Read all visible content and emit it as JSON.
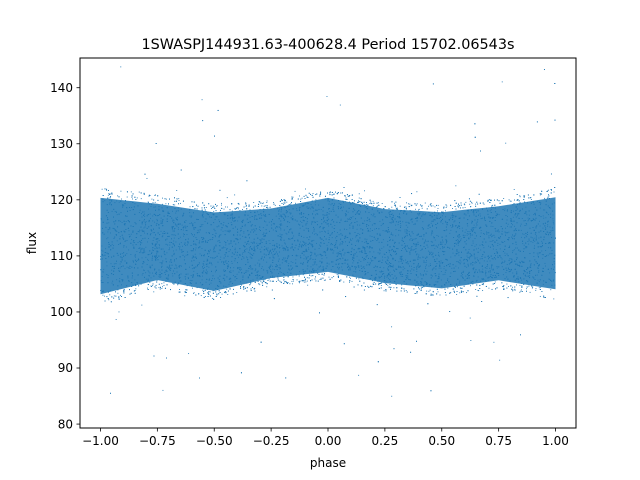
{
  "chart_data": {
    "type": "scatter",
    "title": "1SWASPJ144931.63-400628.4 Period 15702.06543s",
    "xlabel": "phase",
    "ylabel": "flux",
    "xlim": [
      -1.09,
      1.09
    ],
    "ylim": [
      79.3,
      145.3
    ],
    "xticks": [
      -1.0,
      -0.75,
      -0.5,
      -0.25,
      0.0,
      0.25,
      0.5,
      0.75,
      1.0
    ],
    "xtick_labels": [
      "−1.00",
      "−0.75",
      "−0.50",
      "−0.25",
      "0.00",
      "0.25",
      "0.50",
      "0.75",
      "1.00"
    ],
    "yticks": [
      80,
      90,
      100,
      110,
      120,
      130,
      140
    ],
    "ytick_labels": [
      "80",
      "90",
      "100",
      "110",
      "120",
      "130",
      "140"
    ],
    "grid": false,
    "legend": "none",
    "point_color": "#1f77b4",
    "series": [
      {
        "x_range": [
          -1.0,
          1.0
        ],
        "band_low_flux": [
          [
            -1.0,
            101
          ],
          [
            -0.75,
            104
          ],
          [
            -0.5,
            102
          ],
          [
            -0.25,
            104.5
          ],
          [
            0.0,
            105.5
          ],
          [
            0.25,
            103.5
          ],
          [
            0.5,
            102.5
          ],
          [
            0.75,
            104
          ],
          [
            1.0,
            102
          ]
        ],
        "band_high_flux": [
          [
            -1.0,
            122.5
          ],
          [
            -0.75,
            121
          ],
          [
            -0.5,
            119.5
          ],
          [
            -0.25,
            120
          ],
          [
            0.0,
            122
          ],
          [
            0.25,
            120
          ],
          [
            0.5,
            119.5
          ],
          [
            0.75,
            120.5
          ],
          [
            1.0,
            122.5
          ]
        ],
        "outlier_range": [
          82,
          145
        ]
      }
    ]
  }
}
